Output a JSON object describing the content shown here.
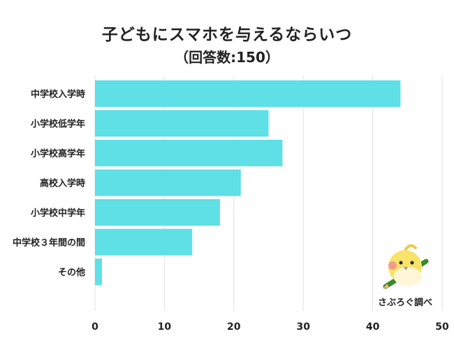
{
  "chart_data": {
    "type": "bar",
    "orientation": "horizontal",
    "title": "子どもにスマホを与えるならいつ",
    "subtitle": "（回答数:150）",
    "categories": [
      "中学校入学時",
      "小学校低学年",
      "小学校高学年",
      "高校入学時",
      "小学校中学年",
      "中学校３年間の間",
      "その他"
    ],
    "values": [
      44,
      25,
      27,
      21,
      18,
      14,
      1
    ],
    "xlim": [
      0,
      50
    ],
    "xticks": [
      0,
      10,
      20,
      30,
      40,
      50
    ],
    "grid": true,
    "bar_color": "#5ee0e6"
  },
  "logo": {
    "text": "さぶろぐ調べ",
    "icon": "bird-with-pencil-icon"
  }
}
